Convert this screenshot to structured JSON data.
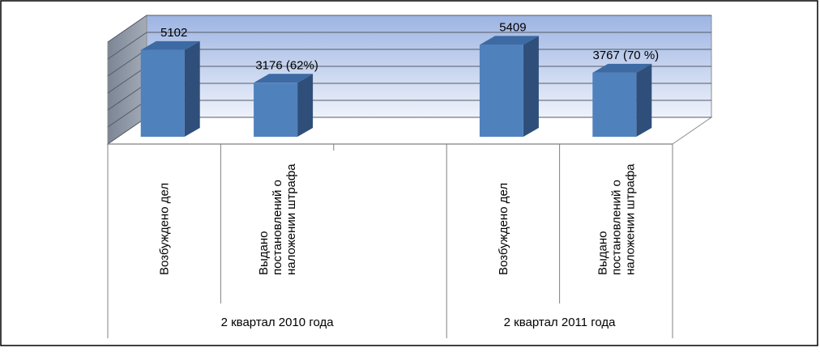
{
  "chart_data": {
    "type": "bar",
    "title": "",
    "xlabel": "",
    "ylabel": "",
    "ylim": [
      0,
      6000
    ],
    "grid": true,
    "legend": "none",
    "categories": [
      "Возбуждено дел",
      "Выдано постановлений о наложении штрафа",
      "",
      "Возбуждено дел",
      "Выдано постановлений о наложении штрафа"
    ],
    "category_lines": [
      [
        "Возбуждено дел"
      ],
      [
        "Выдано",
        "постановлений о",
        "наложении штрафа"
      ],
      [],
      [
        "Возбуждено дел"
      ],
      [
        "Выдано",
        "постановлений о",
        "наложении штрафа"
      ]
    ],
    "groups": [
      {
        "label": "2 квартал 2010 года",
        "span": [
          0,
          2
        ]
      },
      {
        "label": "2 квартал 2011 года",
        "span": [
          3,
          4
        ]
      }
    ],
    "values": [
      5102,
      3176,
      null,
      5409,
      3767
    ],
    "data_labels": [
      "5102",
      "3176 (62%)",
      "",
      "5409",
      "3767 (70 %)"
    ],
    "colors": {
      "bar_front": "#4f81bd",
      "bar_side": "#2f4f7a",
      "bar_top": "#3d6aa3",
      "wall_top": "#9db4e2",
      "wall_bottom": "#eef2fb",
      "side_wall": "#7b8594",
      "axis": "#808080",
      "text": "#000000"
    }
  }
}
